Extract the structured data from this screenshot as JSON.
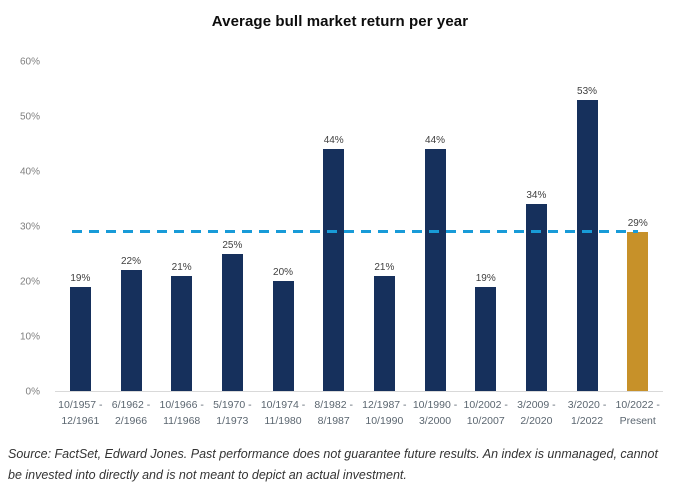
{
  "chart_data": {
    "type": "bar",
    "title": "Average bull market return per year",
    "xlabel": "",
    "ylabel": "",
    "ylim": [
      0,
      60
    ],
    "grid": false,
    "legend": false,
    "categories": [
      "10/1957 - 12/1961",
      "6/1962 - 2/1966",
      "10/1966 - 11/1968",
      "5/1970 - 1/1973",
      "10/1974 - 11/1980",
      "8/1982 - 8/1987",
      "12/1987 - 10/1990",
      "10/1990 - 3/2000",
      "10/2002 - 10/2007",
      "3/2009 - 2/2020",
      "3/2020 - 1/2022",
      "10/2022 - Present"
    ],
    "category_lines": [
      [
        "10/1957 -",
        "12/1961"
      ],
      [
        "6/1962 -",
        "2/1966"
      ],
      [
        "10/1966 -",
        "11/1968"
      ],
      [
        "5/1970 -",
        "1/1973"
      ],
      [
        "10/1974 -",
        "11/1980"
      ],
      [
        "8/1982 -",
        "8/1987"
      ],
      [
        "12/1987 -",
        "10/1990"
      ],
      [
        "10/1990 -",
        "3/2000"
      ],
      [
        "10/2002 -",
        "10/2007"
      ],
      [
        "3/2009 -",
        "2/2020"
      ],
      [
        "3/2020 -",
        "1/2022"
      ],
      [
        "10/2022 -",
        "Present"
      ]
    ],
    "values": [
      19,
      22,
      21,
      25,
      20,
      44,
      21,
      44,
      19,
      34,
      53,
      29
    ],
    "value_labels": [
      "19%",
      "22%",
      "21%",
      "25%",
      "20%",
      "44%",
      "21%",
      "44%",
      "19%",
      "34%",
      "53%",
      "29%"
    ],
    "yticks": [
      0,
      10,
      20,
      30,
      40,
      50,
      60
    ],
    "ytick_labels": [
      "0%",
      "10%",
      "20%",
      "30%",
      "40%",
      "50%",
      "60%"
    ],
    "reference_line": {
      "value": 29,
      "style": "dashed",
      "color": "#189bd8"
    },
    "colors": {
      "bar": "#16305c",
      "highlight": "#c79129",
      "highlight_index": 11,
      "axis_line": "#d9d9d9",
      "value_label": "#404040",
      "tick_label": "#7f7f7f",
      "category_label": "#5b6670"
    }
  },
  "footer": {
    "lines": [
      "Source: FactSet, Edward Jones. Past performance does not guarantee future results. An index is unmanaged, cannot",
      "be invested into directly and is not meant to depict an actual investment."
    ]
  }
}
